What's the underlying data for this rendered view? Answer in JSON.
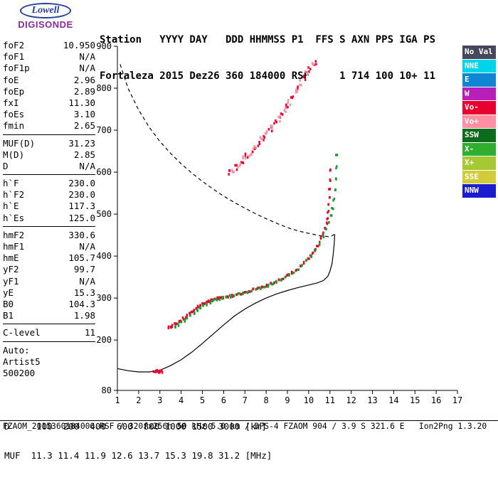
{
  "logo": {
    "brand": "Lowell",
    "product": "DIGISONDE"
  },
  "header": {
    "line1": "Station   YYYY DAY   DDD HHMMSS P1  FFS S AXN PPS IGA PS",
    "line2": "Fortaleza 2015 Dez26 360 184000 RSF     1 714 100 10+ 11"
  },
  "params": {
    "groups": [
      {
        "rows": [
          [
            "foF2",
            "10.950"
          ],
          [
            "foF1",
            "N/A"
          ],
          [
            "foF1p",
            "N/A"
          ],
          [
            "foE",
            "2.96"
          ],
          [
            "foEp",
            "2.89"
          ],
          [
            "fxI",
            "11.30"
          ],
          [
            "foEs",
            "3.10"
          ],
          [
            "fmin",
            "2.65"
          ]
        ]
      },
      {
        "rows": [
          [
            "MUF(D)",
            "31.23"
          ],
          [
            "M(D)",
            "2.85"
          ],
          [
            "D",
            "N/A"
          ]
        ]
      },
      {
        "rows": [
          [
            "h`F",
            "230.0"
          ],
          [
            "h`F2",
            "230.0"
          ],
          [
            "h`E",
            "117.3"
          ],
          [
            "h`Es",
            "125.0"
          ]
        ]
      },
      {
        "rows": [
          [
            "hmF2",
            "330.6"
          ],
          [
            "hmF1",
            "N/A"
          ],
          [
            "hmE",
            "105.7"
          ],
          [
            "yF2",
            "99.7"
          ],
          [
            "yF1",
            "N/A"
          ],
          [
            "yE",
            "15.3"
          ],
          [
            "B0",
            "104.3"
          ],
          [
            "B1",
            "1.98"
          ]
        ]
      },
      {
        "rows": [
          [
            "C-level",
            "11"
          ]
        ]
      }
    ],
    "footer_lines": [
      "Auto:",
      "Artist5",
      "500200"
    ]
  },
  "legend": {
    "items": [
      {
        "label": "No Val",
        "color": "#47475c"
      },
      {
        "label": "NNE",
        "color": "#00d4e8"
      },
      {
        "label": "E",
        "color": "#0e86d4"
      },
      {
        "label": "W",
        "color": "#b81fb8"
      },
      {
        "label": "Vo-",
        "color": "#e8002e"
      },
      {
        "label": "Vo+",
        "color": "#ff8fa3"
      },
      {
        "label": "SSW",
        "color": "#0e6b1e"
      },
      {
        "label": "X-",
        "color": "#2fae2f"
      },
      {
        "label": "X+",
        "color": "#a6c832"
      },
      {
        "label": "SSE",
        "color": "#d2cc3c"
      },
      {
        "label": "NNW",
        "color": "#1b1bd0"
      }
    ]
  },
  "chart_data": {
    "type": "scatter",
    "title": "",
    "xlabel": "",
    "ylabel": "",
    "xlim": [
      1,
      17
    ],
    "ylim": [
      80,
      900
    ],
    "x_ticks": [
      1,
      2,
      3,
      4,
      5,
      6,
      7,
      8,
      9,
      10,
      11,
      12,
      13,
      14,
      15,
      16,
      17
    ],
    "y_ticks": [
      900,
      800,
      700,
      600,
      500,
      400,
      300,
      200,
      80
    ],
    "grid": false,
    "legend_position": "right",
    "series": [
      {
        "name": "F-trace O-mode",
        "color": "#e8002e",
        "spread": 1,
        "points": [
          [
            3.4,
            231
          ],
          [
            3.5,
            232
          ],
          [
            3.6,
            234
          ],
          [
            3.7,
            237
          ],
          [
            3.8,
            240
          ],
          [
            3.9,
            243
          ],
          [
            4.0,
            247
          ],
          [
            4.1,
            251
          ],
          [
            4.2,
            255
          ],
          [
            4.3,
            259
          ],
          [
            4.4,
            263
          ],
          [
            4.5,
            267
          ],
          [
            4.6,
            271
          ],
          [
            4.7,
            275
          ],
          [
            4.8,
            279
          ],
          [
            4.9,
            282
          ],
          [
            5.0,
            285
          ],
          [
            5.1,
            288
          ],
          [
            5.2,
            290
          ],
          [
            5.3,
            292
          ],
          [
            5.4,
            294
          ],
          [
            5.5,
            296
          ],
          [
            5.6,
            297
          ],
          [
            5.7,
            299
          ],
          [
            5.8,
            300
          ],
          [
            5.9,
            301
          ],
          [
            6.0,
            302
          ],
          [
            6.2,
            304
          ],
          [
            6.4,
            306
          ],
          [
            6.6,
            308
          ],
          [
            6.8,
            311
          ],
          [
            7.0,
            314
          ],
          [
            7.2,
            317
          ],
          [
            7.4,
            320
          ],
          [
            7.6,
            323
          ],
          [
            7.8,
            326
          ],
          [
            8.0,
            330
          ],
          [
            8.2,
            334
          ],
          [
            8.4,
            338
          ],
          [
            8.6,
            343
          ],
          [
            8.8,
            348
          ],
          [
            9.0,
            354
          ],
          [
            9.2,
            360
          ],
          [
            9.4,
            367
          ],
          [
            9.6,
            375
          ],
          [
            9.8,
            384
          ],
          [
            10.0,
            394
          ],
          [
            10.1,
            400
          ],
          [
            10.2,
            407
          ],
          [
            10.3,
            414
          ],
          [
            10.4,
            422
          ],
          [
            10.5,
            431
          ],
          [
            10.6,
            442
          ],
          [
            10.7,
            454
          ],
          [
            10.78,
            466
          ],
          [
            10.84,
            478
          ],
          [
            10.88,
            490
          ],
          [
            10.92,
            505
          ],
          [
            10.95,
            522
          ],
          [
            10.97,
            540
          ],
          [
            10.98,
            560
          ],
          [
            11.0,
            582
          ],
          [
            11.0,
            605
          ]
        ]
      },
      {
        "name": "F-trace X-mode",
        "color": "#179e2b",
        "spread": 1,
        "points": [
          [
            3.7,
            233
          ],
          [
            3.85,
            236
          ],
          [
            4.0,
            241
          ],
          [
            4.15,
            246
          ],
          [
            4.3,
            252
          ],
          [
            4.45,
            258
          ],
          [
            4.6,
            264
          ],
          [
            4.75,
            270
          ],
          [
            4.9,
            276
          ],
          [
            5.05,
            281
          ],
          [
            5.2,
            286
          ],
          [
            5.35,
            290
          ],
          [
            5.5,
            293
          ],
          [
            5.65,
            296
          ],
          [
            5.8,
            298
          ],
          [
            5.95,
            300
          ],
          [
            6.1,
            302
          ],
          [
            6.3,
            304
          ],
          [
            6.5,
            306
          ],
          [
            6.7,
            309
          ],
          [
            6.9,
            312
          ],
          [
            7.1,
            315
          ],
          [
            7.3,
            318
          ],
          [
            7.5,
            321
          ],
          [
            7.7,
            324
          ],
          [
            7.9,
            327
          ],
          [
            8.1,
            330
          ],
          [
            8.3,
            334
          ],
          [
            8.5,
            338
          ],
          [
            8.7,
            343
          ],
          [
            8.9,
            349
          ],
          [
            9.1,
            355
          ],
          [
            9.3,
            362
          ],
          [
            9.5,
            370
          ],
          [
            9.7,
            378
          ],
          [
            9.9,
            388
          ],
          [
            10.1,
            399
          ],
          [
            10.3,
            412
          ],
          [
            10.5,
            428
          ],
          [
            10.7,
            446
          ],
          [
            10.85,
            462
          ],
          [
            10.95,
            478
          ],
          [
            11.05,
            495
          ],
          [
            11.12,
            514
          ],
          [
            11.18,
            535
          ],
          [
            11.23,
            558
          ],
          [
            11.27,
            584
          ],
          [
            11.3,
            612
          ],
          [
            11.31,
            640
          ]
        ]
      },
      {
        "name": "Es-trace",
        "color": "#e8002e",
        "spread": 1,
        "points": [
          [
            2.7,
            126
          ],
          [
            2.76,
            125
          ],
          [
            2.82,
            125
          ],
          [
            2.88,
            126
          ],
          [
            2.94,
            124
          ],
          [
            3.0,
            125
          ],
          [
            3.06,
            126
          ],
          [
            3.1,
            125
          ]
        ]
      },
      {
        "name": "F2-second-hop",
        "color": "#e8002e",
        "spread": 2.5,
        "points": [
          [
            6.3,
            598
          ],
          [
            6.6,
            612
          ],
          [
            6.85,
            625
          ],
          [
            7.1,
            638
          ],
          [
            7.4,
            654
          ],
          [
            7.65,
            668
          ],
          [
            7.9,
            683
          ],
          [
            8.2,
            701
          ],
          [
            8.45,
            718
          ],
          [
            8.7,
            735
          ],
          [
            9.0,
            757
          ],
          [
            9.25,
            778
          ],
          [
            9.5,
            799
          ],
          [
            9.8,
            825
          ],
          [
            10.05,
            845
          ],
          [
            10.3,
            858
          ]
        ]
      },
      {
        "name": "F2-second-hop-spread",
        "color": "#ff8fa3",
        "spread": 3,
        "points": [
          [
            6.45,
            605
          ],
          [
            6.7,
            618
          ],
          [
            7.0,
            632
          ],
          [
            7.25,
            646
          ],
          [
            7.5,
            660
          ],
          [
            7.8,
            676
          ],
          [
            8.05,
            692
          ],
          [
            8.3,
            708
          ],
          [
            8.6,
            728
          ],
          [
            8.85,
            746
          ],
          [
            9.1,
            765
          ],
          [
            9.4,
            790
          ],
          [
            9.65,
            812
          ],
          [
            9.9,
            833
          ],
          [
            10.2,
            855
          ]
        ]
      }
    ],
    "lines": [
      {
        "name": "true-height-profile",
        "style": "solid",
        "color": "#000000",
        "points": [
          [
            1.0,
            132
          ],
          [
            1.5,
            127
          ],
          [
            2.0,
            124
          ],
          [
            2.5,
            124
          ],
          [
            3.0,
            128
          ],
          [
            3.5,
            139
          ],
          [
            4.0,
            153
          ],
          [
            4.5,
            171
          ],
          [
            5.0,
            192
          ],
          [
            5.5,
            214
          ],
          [
            6.0,
            236
          ],
          [
            6.5,
            257
          ],
          [
            7.0,
            274
          ],
          [
            7.5,
            288
          ],
          [
            8.0,
            300
          ],
          [
            8.5,
            310
          ],
          [
            9.0,
            318
          ],
          [
            9.5,
            325
          ],
          [
            10.0,
            331
          ],
          [
            10.4,
            336
          ],
          [
            10.7,
            342
          ],
          [
            10.9,
            352
          ],
          [
            11.0,
            364
          ],
          [
            11.1,
            382
          ],
          [
            11.15,
            402
          ],
          [
            11.2,
            428
          ],
          [
            11.23,
            452
          ]
        ]
      },
      {
        "name": "transmission-curve",
        "style": "dashed",
        "color": "#000000",
        "points": [
          [
            1.13,
            857
          ],
          [
            1.5,
            800
          ],
          [
            2.0,
            748
          ],
          [
            2.5,
            707
          ],
          [
            3.0,
            673
          ],
          [
            3.5,
            645
          ],
          [
            4.0,
            620
          ],
          [
            4.5,
            598
          ],
          [
            5.0,
            578
          ],
          [
            5.5,
            560
          ],
          [
            6.0,
            543
          ],
          [
            6.5,
            528
          ],
          [
            7.0,
            514
          ],
          [
            7.5,
            501
          ],
          [
            8.0,
            489
          ],
          [
            8.5,
            478
          ],
          [
            9.0,
            468
          ],
          [
            9.5,
            460
          ],
          [
            10.0,
            454
          ],
          [
            10.5,
            449
          ],
          [
            11.0,
            446
          ],
          [
            11.23,
            452
          ]
        ]
      }
    ]
  },
  "bottom": {
    "d_row": "D     100  200  400  600  800 1000 1500 3000 [km]",
    "muf_row": "MUF  11.3 11.4 11.9 12.6 13.7 15.3 19.8 31.2 [MHz]",
    "footer": "FZAOM_2015360184000.RSF / 320fx256h 50 kHz 5.0 km / DPS-4 FZAOM 904 / 3.9 S 321.6 E   Ion2Png 1.3.20"
  }
}
